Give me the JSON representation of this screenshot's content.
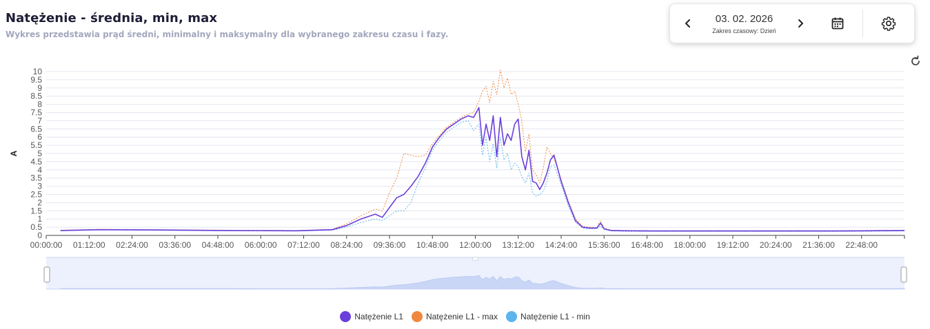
{
  "header": {
    "title": "Natężenie - średnia, min, max",
    "subtitle": "Wykres przedstawia prąd średni, minimalny i maksymalny dla wybranego zakresu czasu i fazy."
  },
  "toolbar": {
    "date": "03. 02. 2026",
    "range_label": "Zakres czasowy: Dzień",
    "prev_icon": "chevron-left-icon",
    "next_icon": "chevron-right-icon",
    "calendar_icon": "calendar-icon",
    "settings_icon": "gear-icon"
  },
  "reset_icon": "reset-zoom-icon",
  "colors": {
    "avg": "#6a3fdc",
    "max": "#f0883e",
    "min": "#5bb4ee",
    "grid": "#e4e6f0",
    "navigator_fill": "#dde6fb"
  },
  "chart_data": {
    "type": "line",
    "ylabel": "A",
    "ylim": [
      0,
      10
    ],
    "yticks": [
      0,
      0.5,
      1,
      1.5,
      2,
      2.5,
      3,
      3.5,
      4,
      4.5,
      5,
      5.5,
      6,
      6.5,
      7,
      7.5,
      8,
      8.5,
      9,
      9.5,
      10
    ],
    "xlim_hours": [
      0,
      24
    ],
    "xticks": [
      "00:00:00",
      "01:12:00",
      "02:24:00",
      "03:36:00",
      "04:48:00",
      "06:00:00",
      "07:12:00",
      "08:24:00",
      "09:36:00",
      "10:48:00",
      "12:00:00",
      "13:12:00",
      "14:24:00",
      "15:36:00",
      "16:48:00",
      "18:00:00",
      "19:12:00",
      "20:24:00",
      "21:36:00",
      "22:48:00"
    ],
    "grid": true,
    "legend_position": "bottom",
    "series": [
      {
        "name": "Natężenie L1",
        "x": [
          0.4,
          1.5,
          3,
          5,
          7,
          8.0,
          8.4,
          8.8,
          9.2,
          9.4,
          9.6,
          9.8,
          10.0,
          10.2,
          10.4,
          10.6,
          10.8,
          11.0,
          11.2,
          11.4,
          11.6,
          11.8,
          11.95,
          12.1,
          12.2,
          12.3,
          12.4,
          12.5,
          12.6,
          12.7,
          12.8,
          12.9,
          13.0,
          13.1,
          13.2,
          13.3,
          13.4,
          13.5,
          13.6,
          13.7,
          13.8,
          13.9,
          14.0,
          14.1,
          14.2,
          14.4,
          14.6,
          14.8,
          15.0,
          15.2,
          15.4,
          15.5,
          15.6,
          15.8,
          16.2,
          17,
          18,
          19,
          20,
          21,
          22,
          23,
          24
        ],
        "values": [
          0.3,
          0.35,
          0.33,
          0.3,
          0.28,
          0.35,
          0.6,
          1.0,
          1.3,
          1.1,
          1.7,
          2.3,
          2.5,
          3.0,
          3.6,
          4.4,
          5.4,
          6.0,
          6.5,
          6.8,
          7.1,
          7.3,
          7.2,
          7.8,
          5.5,
          6.8,
          5.8,
          7.3,
          4.8,
          7.2,
          5.5,
          6.2,
          5.8,
          6.8,
          7.1,
          4.8,
          4.0,
          5.2,
          3.3,
          3.2,
          2.8,
          3.2,
          3.8,
          4.6,
          4.9,
          3.3,
          2.0,
          0.9,
          0.5,
          0.45,
          0.45,
          0.75,
          0.4,
          0.3,
          0.28,
          0.27,
          0.27,
          0.27,
          0.27,
          0.27,
          0.27,
          0.28,
          0.3
        ]
      },
      {
        "name": "Natężenie L1 - max",
        "x": [
          0.4,
          1.5,
          3,
          5,
          7,
          8.0,
          8.4,
          8.8,
          9.2,
          9.4,
          9.6,
          9.8,
          10.0,
          10.2,
          10.4,
          10.6,
          10.8,
          11.0,
          11.2,
          11.4,
          11.6,
          11.8,
          11.95,
          12.1,
          12.2,
          12.3,
          12.4,
          12.5,
          12.6,
          12.7,
          12.8,
          12.9,
          13.0,
          13.1,
          13.2,
          13.3,
          13.4,
          13.5,
          13.6,
          13.7,
          13.8,
          13.9,
          14.0,
          14.1,
          14.2,
          14.4,
          14.6,
          14.8,
          15.0,
          15.2,
          15.4,
          15.5,
          15.6,
          15.8,
          16.2,
          17,
          18,
          19,
          20,
          21,
          22,
          23,
          24
        ],
        "values": [
          0.32,
          0.37,
          0.35,
          0.32,
          0.3,
          0.37,
          0.7,
          1.2,
          1.6,
          1.5,
          2.6,
          3.5,
          5.0,
          4.9,
          4.8,
          4.9,
          5.6,
          6.1,
          6.6,
          6.9,
          7.2,
          7.4,
          7.5,
          8.2,
          8.8,
          9.1,
          8.1,
          9.4,
          8.6,
          10.1,
          9.0,
          9.6,
          8.6,
          8.8,
          8.0,
          7.0,
          5.1,
          6.2,
          4.0,
          3.7,
          3.2,
          4.1,
          5.4,
          5.0,
          4.7,
          3.4,
          2.1,
          1.0,
          0.55,
          0.5,
          0.48,
          0.9,
          0.45,
          0.32,
          0.3,
          0.29,
          0.29,
          0.29,
          0.29,
          0.29,
          0.29,
          0.3,
          0.32
        ]
      },
      {
        "name": "Natężenie L1 - min",
        "x": [
          0.4,
          1.5,
          3,
          5,
          7,
          8.0,
          8.4,
          8.8,
          9.2,
          9.4,
          9.6,
          9.8,
          10.0,
          10.2,
          10.4,
          10.6,
          10.8,
          11.0,
          11.2,
          11.4,
          11.6,
          11.8,
          11.95,
          12.1,
          12.2,
          12.3,
          12.4,
          12.5,
          12.6,
          12.7,
          12.8,
          12.9,
          13.0,
          13.1,
          13.2,
          13.3,
          13.4,
          13.5,
          13.6,
          13.7,
          13.8,
          13.9,
          14.0,
          14.1,
          14.2,
          14.4,
          14.6,
          14.8,
          15.0,
          15.2,
          15.4,
          15.5,
          15.6,
          15.8,
          16.2,
          17,
          18,
          19,
          20,
          21,
          22,
          23,
          24
        ],
        "values": [
          0.28,
          0.33,
          0.31,
          0.28,
          0.26,
          0.32,
          0.5,
          0.8,
          1.0,
          0.9,
          1.2,
          1.5,
          1.5,
          2.0,
          3.2,
          4.1,
          5.2,
          5.8,
          6.3,
          6.6,
          6.9,
          7.0,
          6.4,
          6.8,
          4.9,
          6.0,
          4.5,
          5.6,
          4.1,
          6.0,
          4.6,
          5.0,
          4.0,
          4.4,
          4.2,
          3.6,
          3.2,
          3.8,
          2.6,
          2.4,
          2.5,
          2.7,
          3.3,
          4.2,
          4.3,
          3.1,
          1.8,
          0.8,
          0.45,
          0.4,
          0.42,
          0.55,
          0.36,
          0.27,
          0.25,
          0.24,
          0.24,
          0.24,
          0.24,
          0.24,
          0.24,
          0.25,
          0.27
        ]
      }
    ]
  }
}
